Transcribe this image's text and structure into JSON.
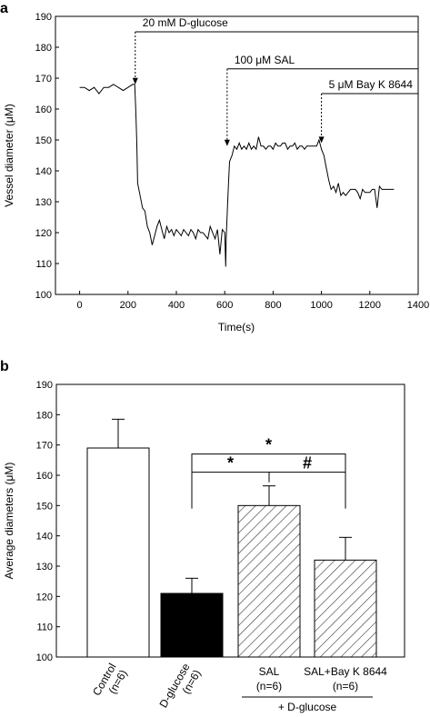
{
  "chart_data": [
    {
      "panel": "a",
      "type": "line",
      "xlabel": "Time(s)",
      "ylabel": "Vessel diameter (μM)",
      "xlim": [
        -100,
        1400
      ],
      "ylim": [
        100,
        190
      ],
      "xticks": [
        0,
        200,
        400,
        600,
        800,
        1000,
        1200,
        1400
      ],
      "yticks": [
        100,
        110,
        120,
        130,
        140,
        150,
        160,
        170,
        180,
        190
      ],
      "series": [
        {
          "x": [
            0,
            20,
            40,
            60,
            80,
            100,
            120,
            140,
            160,
            180,
            200,
            220,
            228,
            232,
            236,
            240,
            250,
            260,
            270,
            280,
            290,
            300,
            310,
            320,
            330,
            340,
            350,
            360,
            370,
            380,
            390,
            400,
            410,
            420,
            430,
            440,
            450,
            460,
            470,
            480,
            490,
            500,
            510,
            520,
            530,
            540,
            550,
            560,
            570,
            580,
            590,
            600,
            604,
            606,
            610,
            615,
            620,
            630,
            640,
            650,
            660,
            670,
            680,
            690,
            700,
            710,
            720,
            730,
            740,
            750,
            760,
            770,
            780,
            790,
            800,
            810,
            820,
            830,
            840,
            850,
            860,
            870,
            880,
            890,
            900,
            910,
            920,
            930,
            940,
            950,
            960,
            970,
            980,
            990,
            1000,
            1010,
            1020,
            1030,
            1040,
            1050,
            1060,
            1070,
            1080,
            1090,
            1100,
            1110,
            1120,
            1130,
            1140,
            1150,
            1160,
            1170,
            1180,
            1190,
            1200,
            1210,
            1220,
            1230,
            1240,
            1250,
            1260,
            1270,
            1280,
            1290,
            1300
          ],
          "y": [
            167,
            167,
            166,
            167,
            165,
            167,
            167,
            168,
            167,
            166,
            167,
            168,
            168,
            160,
            150,
            136,
            132,
            128,
            127,
            122,
            120,
            116,
            119,
            122,
            124,
            121,
            118,
            122,
            120,
            121,
            119,
            121,
            120,
            119,
            121,
            120,
            119,
            121,
            120,
            118,
            121,
            120,
            120,
            119,
            118,
            122,
            120,
            118,
            121,
            113,
            121,
            120,
            109,
            118,
            126,
            135,
            143,
            145,
            148,
            147,
            149,
            147,
            148,
            147,
            149,
            147,
            148,
            147,
            151,
            148,
            148,
            147,
            148,
            148,
            147,
            149,
            148,
            148,
            149,
            149,
            147,
            148,
            148,
            149,
            147,
            148,
            148,
            147,
            148,
            148,
            148,
            148,
            148,
            150,
            147,
            145,
            141,
            137,
            134,
            135,
            133,
            136,
            132,
            133,
            132,
            133,
            134,
            134,
            134,
            133,
            131,
            134,
            133,
            133,
            133,
            134,
            134,
            128,
            135,
            134,
            134,
            134,
            134,
            134,
            134
          ]
        }
      ],
      "annotations": [
        {
          "label": "20 mM D-glucose",
          "x_start": 230,
          "y_level": 185,
          "arrow_y": 168
        },
        {
          "label": "100 μM SAL",
          "x_start": 610,
          "y_level": 173,
          "arrow_y": 148
        },
        {
          "label": "5 μM Bay K 8644",
          "x_start": 1000,
          "y_level": 165,
          "arrow_y": 149
        }
      ]
    },
    {
      "panel": "b",
      "type": "bar",
      "ylabel": "Average diameters (μM)",
      "ylim": [
        100,
        190
      ],
      "yticks": [
        100,
        110,
        120,
        130,
        140,
        150,
        160,
        170,
        180,
        190
      ],
      "categories": [
        "Control\n(n=6)",
        "D-glucose\n(n=6)",
        "SAL\n(n=6)",
        "SAL+Bay K 8644\n(n=6)"
      ],
      "values": [
        169,
        121,
        150,
        132
      ],
      "errors": [
        9.5,
        5,
        6.5,
        7.5
      ],
      "fills": [
        "white",
        "black",
        "hatched",
        "hatched"
      ],
      "group_label": "+ D-glucose",
      "group_indices": [
        2,
        3
      ],
      "significance": [
        {
          "from": 1,
          "to": 3,
          "y": 167,
          "label": "*"
        },
        {
          "from": 1,
          "to": 2,
          "y": 161,
          "label": "*"
        },
        {
          "from": 2,
          "to": 3,
          "y": 161,
          "label": "#"
        }
      ]
    }
  ],
  "panel_labels": [
    "a",
    "b"
  ]
}
